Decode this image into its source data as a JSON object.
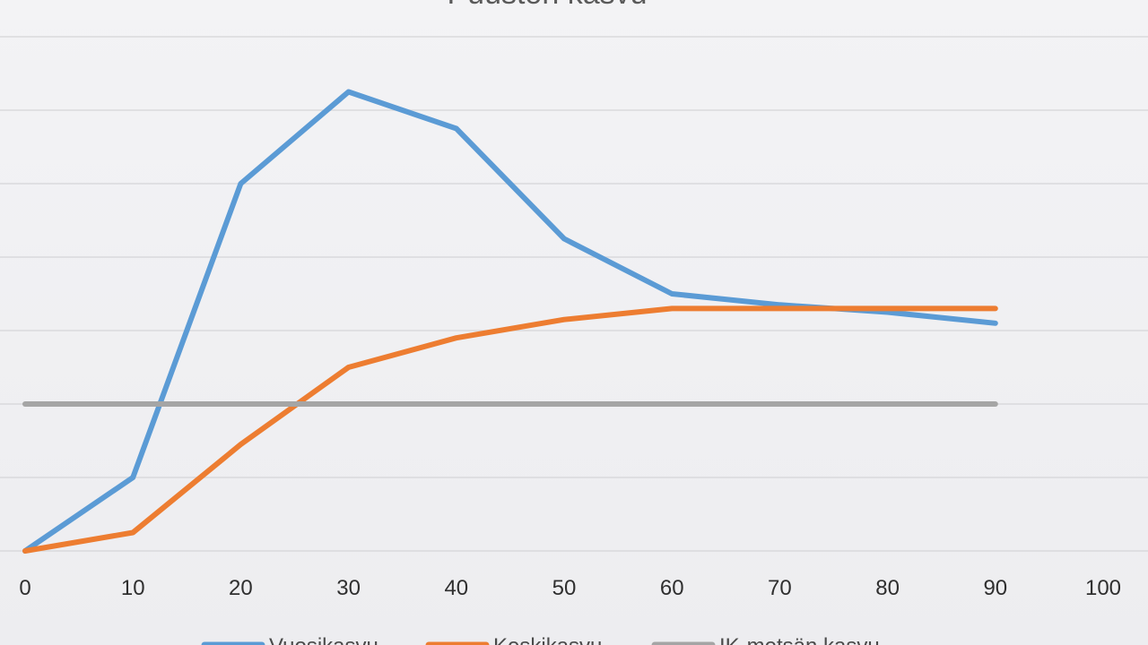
{
  "chart_data": {
    "type": "line",
    "title": "Puuston kasvu",
    "xlabel": "",
    "ylabel": "",
    "xlim": [
      0,
      100
    ],
    "ylim": [
      0,
      7.5
    ],
    "xticks": [
      0,
      10,
      20,
      30,
      40,
      50,
      60,
      70,
      80,
      90,
      100
    ],
    "grid": true,
    "legend_position": "bottom",
    "series": [
      {
        "name": "Vuosikasvu",
        "color": "#5b9bd5",
        "x": [
          0,
          10,
          20,
          30,
          40,
          50,
          60,
          70,
          80,
          90
        ],
        "y": [
          0,
          1.0,
          5.0,
          6.25,
          5.75,
          4.25,
          3.5,
          3.35,
          3.25,
          3.1
        ]
      },
      {
        "name": "Keskikasvu",
        "color": "#ed7d31",
        "x": [
          0,
          10,
          20,
          30,
          40,
          50,
          60,
          70,
          80,
          90
        ],
        "y": [
          0,
          0.25,
          1.45,
          2.5,
          2.9,
          3.15,
          3.3,
          3.3,
          3.3,
          3.3
        ]
      },
      {
        "name": "IK-metsän kasvu",
        "color": "#a5a5a5",
        "x": [
          0,
          90
        ],
        "y": [
          2.0,
          2.0
        ]
      }
    ]
  }
}
